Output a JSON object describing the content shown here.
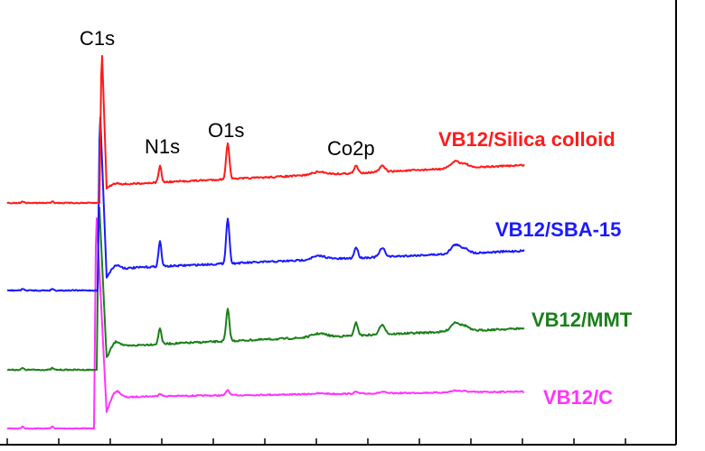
{
  "chart_data": {
    "type": "line",
    "title": "",
    "xlabel": "",
    "ylabel": "",
    "grid": false,
    "legend": "none",
    "x_ticks": 13,
    "annotations": [
      {
        "text": "C1s"
      },
      {
        "text": "N1s"
      },
      {
        "text": "O1s"
      },
      {
        "text": "Co2p"
      }
    ],
    "series": [
      {
        "name": "VB12/Silica colloid",
        "color": "#ff1a1a"
      },
      {
        "name": "VB12/SBA-15",
        "color": "#1a1aff"
      },
      {
        "name": "VB12/MMT",
        "color": "#1a801a"
      },
      {
        "name": "VB12/C",
        "color": "#ff33ff"
      }
    ]
  }
}
